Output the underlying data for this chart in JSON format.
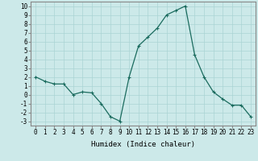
{
  "x": [
    0,
    1,
    2,
    3,
    4,
    5,
    6,
    7,
    8,
    9,
    10,
    11,
    12,
    13,
    14,
    15,
    16,
    17,
    18,
    19,
    20,
    21,
    22,
    23
  ],
  "y": [
    2,
    1.5,
    1.2,
    1.2,
    0.0,
    0.3,
    0.2,
    -1.0,
    -2.5,
    -3.0,
    2.0,
    5.5,
    6.5,
    7.5,
    9.0,
    9.5,
    10.0,
    4.5,
    2.0,
    0.3,
    -0.5,
    -1.2,
    -1.2,
    -2.5
  ],
  "line_color": "#1a6b5e",
  "marker": "+",
  "marker_size": 3,
  "marker_lw": 0.8,
  "bg_color": "#cce9e9",
  "grid_color": "#aad4d4",
  "xlabel": "Humidex (Indice chaleur)",
  "xlim": [
    -0.5,
    23.5
  ],
  "ylim": [
    -3.5,
    10.5
  ],
  "yticks": [
    -3,
    -2,
    -1,
    0,
    1,
    2,
    3,
    4,
    5,
    6,
    7,
    8,
    9,
    10
  ],
  "xticks": [
    0,
    1,
    2,
    3,
    4,
    5,
    6,
    7,
    8,
    9,
    10,
    11,
    12,
    13,
    14,
    15,
    16,
    17,
    18,
    19,
    20,
    21,
    22,
    23
  ],
  "label_fontsize": 6.5,
  "tick_fontsize": 5.5,
  "line_width": 0.9
}
